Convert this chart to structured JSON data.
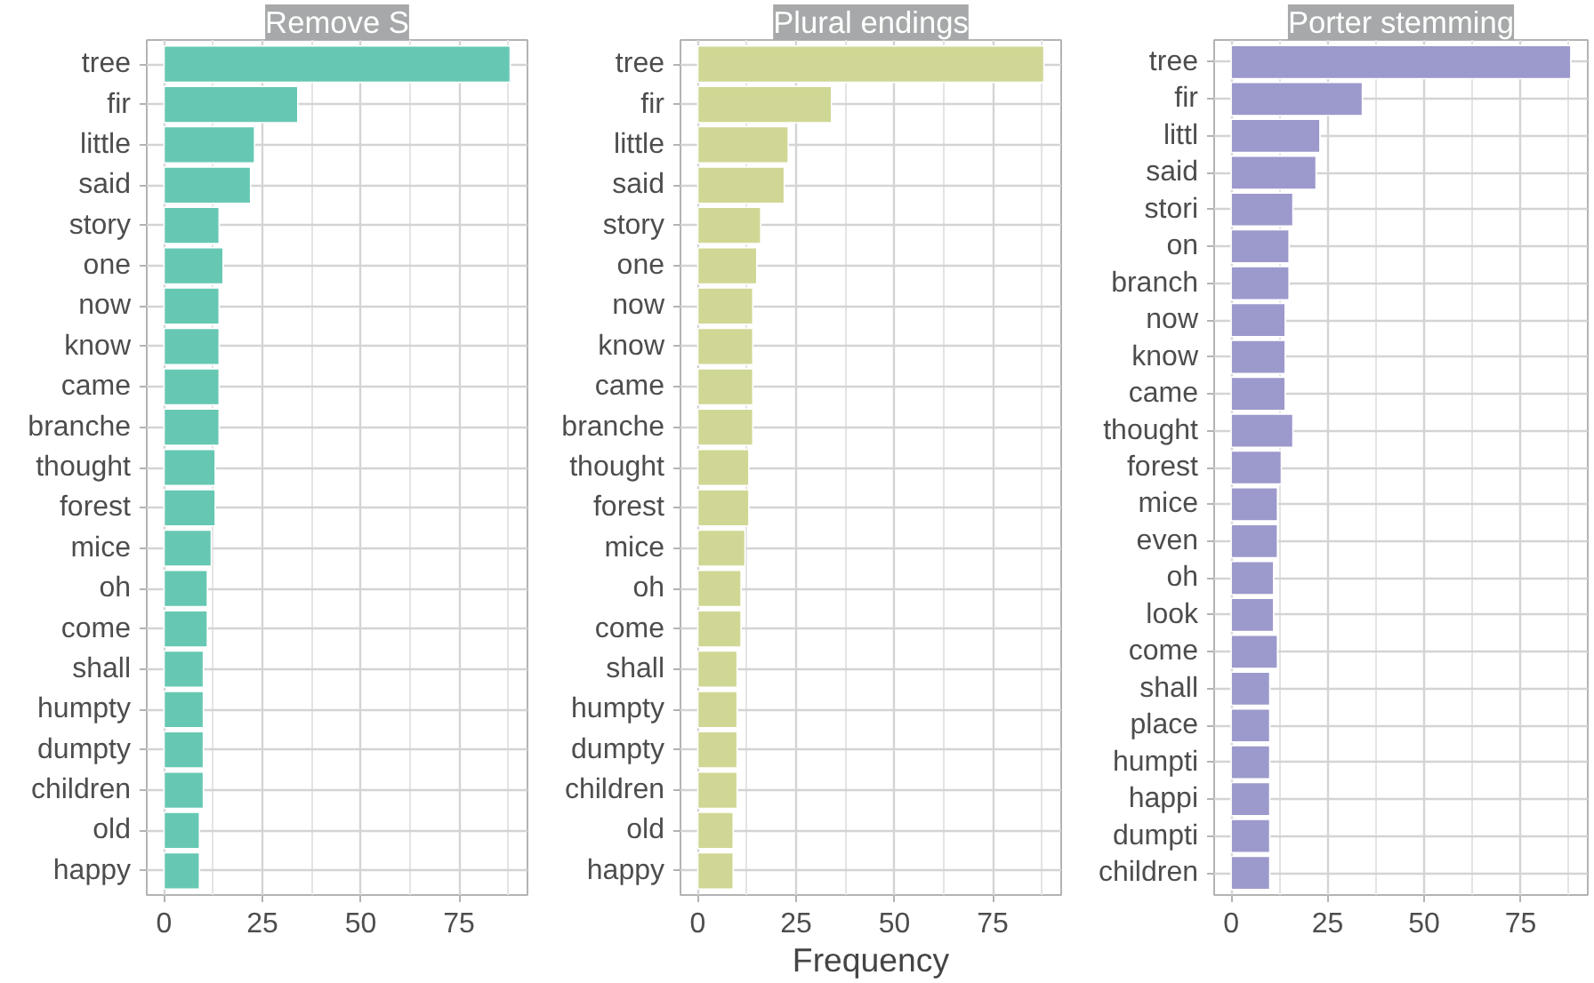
{
  "chart_data": [
    {
      "type": "bar",
      "orientation": "horizontal",
      "title": "Remove S",
      "color": "#66c8b2",
      "xlim": [
        -4.4,
        92.4
      ],
      "xticks": [
        0,
        25,
        50,
        75
      ],
      "grid": true,
      "categories": [
        "tree",
        "fir",
        "little",
        "said",
        "story",
        "one",
        "now",
        "know",
        "came",
        "branche",
        "thought",
        "forest",
        "mice",
        "oh",
        "come",
        "shall",
        "humpty",
        "dumpty",
        "children",
        "old",
        "happy"
      ],
      "values": [
        88,
        34,
        23,
        22,
        14,
        15,
        14,
        14,
        14,
        14,
        13,
        13,
        12,
        11,
        11,
        10,
        10,
        10,
        10,
        9,
        9
      ]
    },
    {
      "type": "bar",
      "orientation": "horizontal",
      "title": "Plural endings",
      "xlabel": "Frequency",
      "color": "#d0d794",
      "xlim": [
        -4.4,
        92.4
      ],
      "xticks": [
        0,
        25,
        50,
        75
      ],
      "grid": true,
      "categories": [
        "tree",
        "fir",
        "little",
        "said",
        "story",
        "one",
        "now",
        "know",
        "came",
        "branche",
        "thought",
        "forest",
        "mice",
        "oh",
        "come",
        "shall",
        "humpty",
        "dumpty",
        "children",
        "old",
        "happy"
      ],
      "values": [
        88,
        34,
        23,
        22,
        16,
        15,
        14,
        14,
        14,
        14,
        13,
        13,
        12,
        11,
        11,
        10,
        10,
        10,
        10,
        9,
        9
      ]
    },
    {
      "type": "bar",
      "orientation": "horizontal",
      "title": "Porter stemming",
      "color": "#9c99cc",
      "xlim": [
        -4.4,
        92.4
      ],
      "xticks": [
        0,
        25,
        50,
        75
      ],
      "grid": true,
      "categories": [
        "tree",
        "fir",
        "littl",
        "said",
        "stori",
        "on",
        "branch",
        "now",
        "know",
        "came",
        "thought",
        "forest",
        "mice",
        "even",
        "oh",
        "look",
        "come",
        "shall",
        "place",
        "humpti",
        "happi",
        "dumpti",
        "children"
      ],
      "values": [
        88,
        34,
        23,
        22,
        16,
        15,
        15,
        14,
        14,
        14,
        16,
        13,
        12,
        12,
        11,
        11,
        12,
        10,
        10,
        10,
        10,
        10,
        10
      ]
    }
  ]
}
